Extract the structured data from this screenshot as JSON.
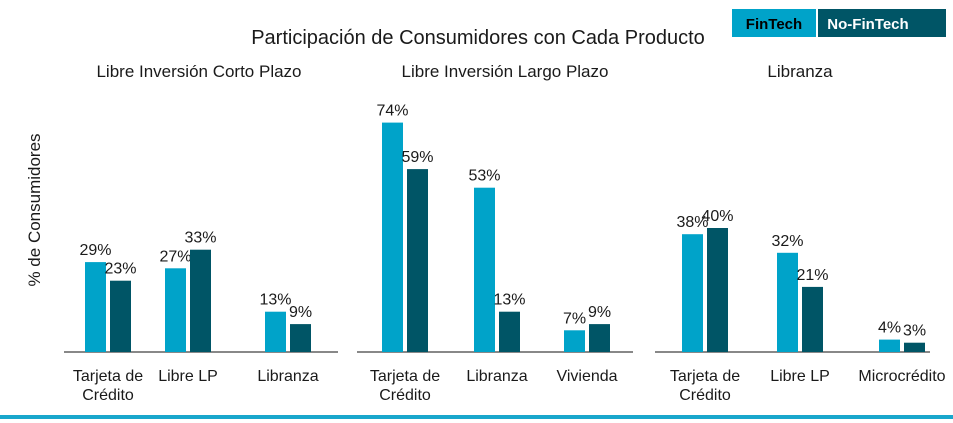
{
  "colors": {
    "fintech": "#00a3c9",
    "nofintech": "#005566",
    "bottom_line": "#19a7cc",
    "axis": "#404040"
  },
  "chart_data": {
    "type": "bar",
    "title": "Participación de Consumidores con Cada Producto",
    "ylabel": "% de Consumidores",
    "ylim": [
      0,
      80
    ],
    "legend": {
      "placement": "top-right",
      "items": [
        "FinTech",
        "No-FinTech"
      ]
    },
    "panels": [
      {
        "title": "Libre Inversión Corto Plazo",
        "categories": [
          [
            "Tarjeta de",
            "Crédito"
          ],
          [
            "Libre LP"
          ],
          [
            "Libranza"
          ]
        ],
        "series": [
          {
            "name": "FinTech",
            "values": [
              29,
              27,
              13
            ],
            "labels": [
              "29%",
              "27%",
              "13%"
            ]
          },
          {
            "name": "No-FinTech",
            "values": [
              23,
              33,
              9
            ],
            "labels": [
              "23%",
              "33%",
              "9%"
            ]
          }
        ]
      },
      {
        "title": "Libre Inversión Largo Plazo",
        "categories": [
          [
            "Tarjeta de",
            "Crédito"
          ],
          [
            "Libranza"
          ],
          [
            "Vivienda"
          ]
        ],
        "series": [
          {
            "name": "FinTech",
            "values": [
              74,
              53,
              7
            ],
            "labels": [
              "74%",
              "53%",
              "7%"
            ]
          },
          {
            "name": "No-FinTech",
            "values": [
              59,
              13,
              9
            ],
            "labels": [
              "59%",
              "13%",
              "9%"
            ]
          }
        ]
      },
      {
        "title": "Libranza",
        "categories": [
          [
            "Tarjeta de",
            "Crédito"
          ],
          [
            "Libre LP"
          ],
          [
            "Microcrédito"
          ]
        ],
        "series": [
          {
            "name": "FinTech",
            "values": [
              38,
              32,
              4
            ],
            "labels": [
              "38%",
              "32%",
              "4%"
            ]
          },
          {
            "name": "No-FinTech",
            "values": [
              40,
              21,
              3
            ],
            "labels": [
              "40%",
              "21%",
              "3%"
            ]
          }
        ]
      }
    ]
  }
}
